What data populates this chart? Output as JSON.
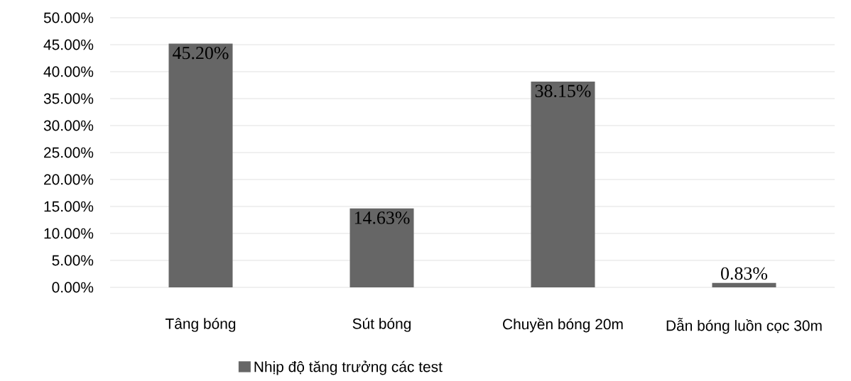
{
  "chart_data": {
    "type": "bar",
    "categories": [
      "Tâng bóng",
      "Sút bóng",
      "Chuyền bóng 20m",
      "Dẫn bóng luồn cọc 30m"
    ],
    "series": [
      {
        "name": "Nhịp độ tăng trưởng các test",
        "color": "#666666",
        "values": [
          45.2,
          14.63,
          38.15,
          0.83
        ],
        "value_labels": [
          "45.20%",
          "14.63%",
          "38.15%",
          "0.83%"
        ]
      }
    ],
    "ylim": [
      0,
      50
    ],
    "yticks": [
      {
        "value": 0,
        "label": "0.00%"
      },
      {
        "value": 5,
        "label": "5.00%"
      },
      {
        "value": 10,
        "label": "10.00%"
      },
      {
        "value": 15,
        "label": "15.00%"
      },
      {
        "value": 20,
        "label": "20.00%"
      },
      {
        "value": 25,
        "label": "25.00%"
      },
      {
        "value": 30,
        "label": "30.00%"
      },
      {
        "value": 35,
        "label": "35.00%"
      },
      {
        "value": 40,
        "label": "40.00%"
      },
      {
        "value": 45,
        "label": "45.00%"
      },
      {
        "value": 50,
        "label": "50.00%"
      }
    ],
    "grid": "y",
    "legend": "bottom"
  }
}
